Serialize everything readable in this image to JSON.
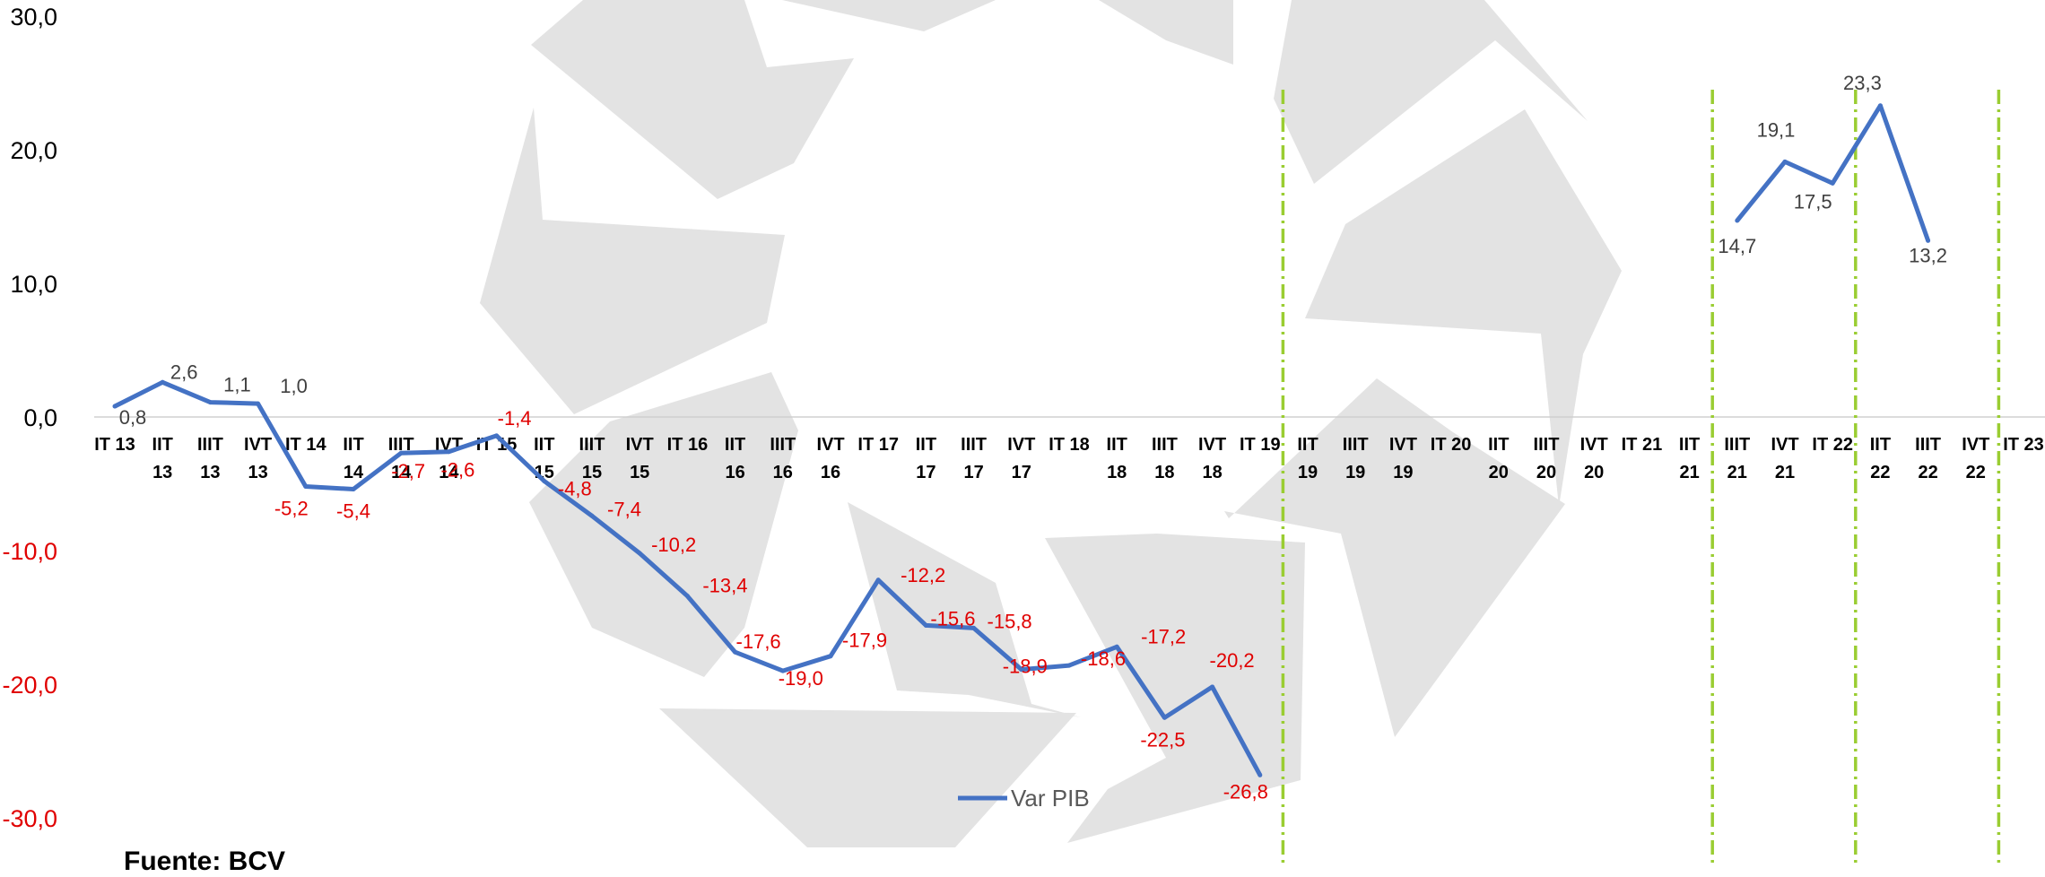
{
  "chart_data": {
    "type": "line",
    "title": "",
    "xlabel": "",
    "ylabel": "",
    "ylim": [
      -30,
      30
    ],
    "y_ticks": [
      "30,0",
      "20,0",
      "10,0",
      "0,0",
      "-10,0",
      "-20,0",
      "-30,0"
    ],
    "categories": [
      "IT 13",
      "IIT 13",
      "IIIT 13",
      "IVT 13",
      "IT 14",
      "IIT 14",
      "IIIT 14",
      "IVT 14",
      "IT 15",
      "IIT 15",
      "IIIT 15",
      "IVT 15",
      "IT 16",
      "IIT 16",
      "IIIT 16",
      "IVT 16",
      "IT 17",
      "IIT 17",
      "IIIT 17",
      "IVT 17",
      "IT 18",
      "IIT 18",
      "IIIT 18",
      "IVT 18",
      "IT 19",
      "IIT 19",
      "IIIT 19",
      "IVT 19",
      "IT 20",
      "IIT 20",
      "IIIT 20",
      "IVT 20",
      "IT 21",
      "IIT 21",
      "IIIT 21",
      "IVT 21",
      "IT 22",
      "IIT 22",
      "IIIT 22",
      "IVT 22",
      "IT 23"
    ],
    "series": [
      {
        "name": "Var PIB",
        "color": "#4472c4",
        "values": [
          0.8,
          2.6,
          1.1,
          1.0,
          -5.2,
          -5.4,
          -2.7,
          -2.6,
          -1.4,
          -4.8,
          -7.4,
          -10.2,
          -13.4,
          -17.6,
          -19.0,
          -17.9,
          -12.2,
          -15.6,
          -15.8,
          -18.9,
          -18.6,
          -17.2,
          -22.5,
          -20.2,
          -26.8,
          null,
          null,
          null,
          null,
          null,
          null,
          null,
          null,
          null,
          14.7,
          19.1,
          17.5,
          23.3,
          13.2,
          null,
          null
        ],
        "labels": [
          "0,8",
          "2,6",
          "1,1",
          "1,0",
          "-5,2",
          "-5,4",
          "-2,7",
          "-2,6",
          "-1,4",
          "-4,8",
          "-7,4",
          "-10,2",
          "-13,4",
          "-17,6",
          "-19,0",
          "-17,9",
          "-12,2",
          "-15,6",
          "-15,8",
          "-18,9",
          "-18,6",
          "-17,2",
          "-22,5",
          "-20,2",
          "-26,8",
          null,
          null,
          null,
          null,
          null,
          null,
          null,
          null,
          null,
          "14,7",
          "19,1",
          "17,5",
          "23,3",
          "13,2",
          null,
          null
        ]
      }
    ],
    "vertical_markers_after_index": [
      24,
      33,
      36,
      39
    ],
    "marker_color": "#9acd32",
    "positive_label_color": "#404040",
    "negative_label_color": "#e00000",
    "legend": "bottom-center",
    "grid": false
  },
  "source_text": "Fuente: BCV"
}
